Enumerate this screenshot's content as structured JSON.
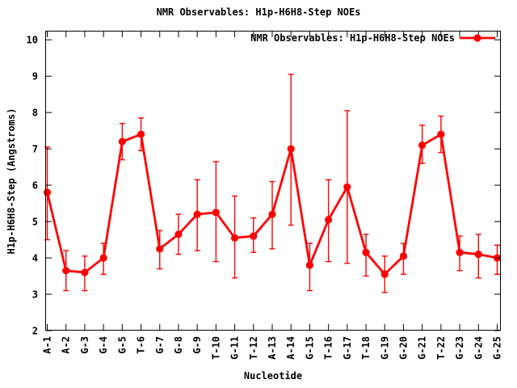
{
  "page": {
    "title": "NMR Observables: H1p-H6H8-Step NOEs"
  },
  "chart_data": {
    "type": "line",
    "title": "NMR Observables: H1p-H6H8-Step NOEs",
    "xlabel": "Nucleotide",
    "ylabel": "H1p-H6H8-Step (Angstroms)",
    "ylim": [
      2,
      10.25
    ],
    "yticks": [
      2,
      3,
      4,
      5,
      6,
      7,
      8,
      9,
      10
    ],
    "grid": false,
    "legend_position": "top-right-inside",
    "background_color": "#ffffff",
    "axis_color": "#000000",
    "categories": [
      "A-1",
      "A-2",
      "G-3",
      "G-4",
      "G-5",
      "T-6",
      "G-7",
      "G-8",
      "G-9",
      "T-10",
      "G-11",
      "T-12",
      "A-13",
      "A-14",
      "G-15",
      "T-16",
      "G-17",
      "T-18",
      "G-19",
      "G-20",
      "G-21",
      "T-22",
      "G-23",
      "G-24",
      "G-25"
    ],
    "series": [
      {
        "name": "NMR Observables: H1p-H6H8-Step NOEs",
        "color": "#ff0000",
        "marker": "filled-circle",
        "values": [
          5.8,
          3.65,
          3.6,
          4.0,
          7.2,
          7.4,
          4.25,
          4.65,
          5.2,
          5.25,
          4.55,
          4.6,
          5.2,
          7.0,
          3.8,
          5.05,
          5.95,
          4.15,
          3.55,
          4.05,
          7.1,
          7.4,
          4.15,
          4.1,
          4.0
        ],
        "error_low": [
          4.5,
          3.1,
          3.1,
          3.55,
          6.7,
          6.95,
          3.7,
          4.1,
          4.2,
          3.9,
          3.45,
          4.15,
          4.25,
          4.9,
          3.1,
          3.9,
          3.85,
          3.5,
          3.05,
          3.55,
          6.6,
          6.9,
          3.65,
          3.45,
          3.55
        ],
        "error_high": [
          7.05,
          4.2,
          4.05,
          4.4,
          7.7,
          7.85,
          4.75,
          5.2,
          6.15,
          6.65,
          5.7,
          5.1,
          6.1,
          9.05,
          4.4,
          6.15,
          8.05,
          4.65,
          4.05,
          4.4,
          7.65,
          7.9,
          4.6,
          4.65,
          4.35
        ]
      }
    ]
  }
}
